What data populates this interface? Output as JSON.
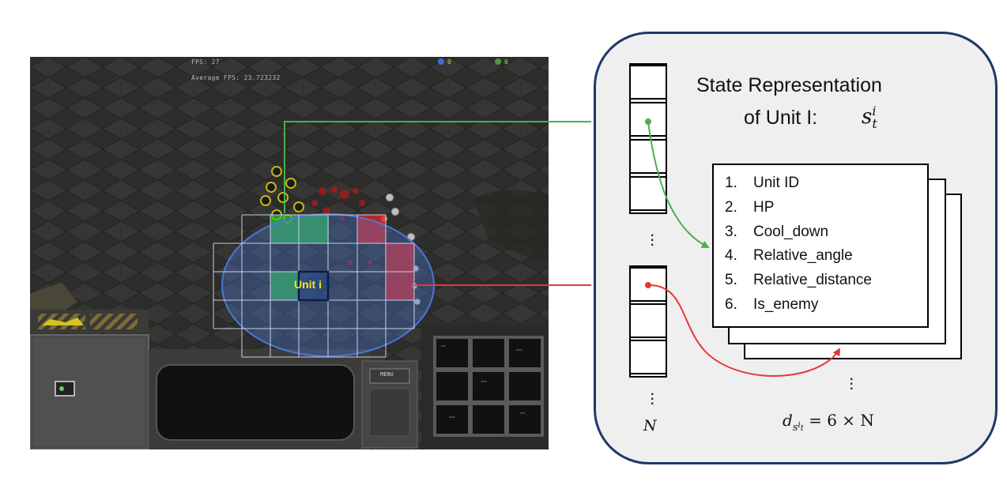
{
  "game": {
    "fps": "FPS: 27",
    "average_fps": "Average FPS: 23.723232",
    "resources": [
      "0",
      "0"
    ],
    "menu_label": "MENU"
  },
  "overlay": {
    "unit_label": "Unit i"
  },
  "panel": {
    "title_line1": "State Representation",
    "title_line2": "of Unit I:",
    "title_symbol": "s",
    "title_symbol_sup": "i",
    "title_symbol_sub": "t",
    "features": [
      {
        "num": "1.",
        "label": "Unit ID"
      },
      {
        "num": "2.",
        "label": "HP"
      },
      {
        "num": "3.",
        "label": "Cool_down"
      },
      {
        "num": "4.",
        "label": "Relative_angle"
      },
      {
        "num": "5.",
        "label": "Relative_distance"
      },
      {
        "num": "6.",
        "label": "Is_enemy"
      }
    ],
    "n_label": "N",
    "formula": {
      "d": "d",
      "s": "s",
      "sup": "i",
      "sub": "t",
      "rhs": "= 6 × N"
    }
  },
  "colors": {
    "panel_border": "#1f3864",
    "green_arrow": "#4caf50",
    "red_arrow": "#e53935",
    "ellipse": "#4a78d6"
  }
}
